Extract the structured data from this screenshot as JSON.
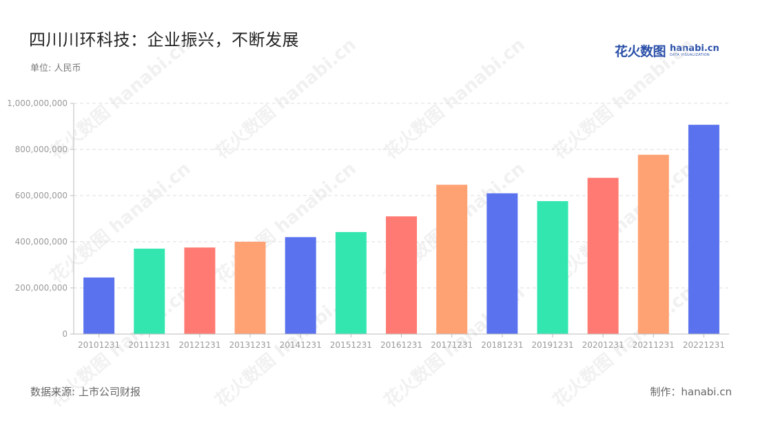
{
  "header": {
    "title": "四川川环科技：企业振兴，不断发展",
    "unit": "单位: 人民币"
  },
  "logo": {
    "cn": "花火数图",
    "en": "hanabi.cn",
    "en_sub": "DATA VISUALIZATION"
  },
  "footer": {
    "source": "数据来源: 上市公司财报",
    "credit": "制作：hanabi.cn"
  },
  "watermark_text": "花火数图 hanabi.cn",
  "chart_data": {
    "type": "bar",
    "categories": [
      "20101231",
      "20111231",
      "20121231",
      "20131231",
      "20141231",
      "20151231",
      "20161231",
      "20171231",
      "20181231",
      "20191231",
      "20201231",
      "20211231",
      "20221231"
    ],
    "values": [
      245000000,
      370000000,
      375000000,
      400000000,
      420000000,
      442000000,
      510000000,
      647000000,
      610000000,
      576000000,
      677000000,
      777000000,
      907000000
    ],
    "colors": [
      "#5a72ee",
      "#33e6b0",
      "#ff7a72",
      "#ffa273",
      "#5a72ee",
      "#33e6b0",
      "#ff7a72",
      "#ffa273",
      "#5a72ee",
      "#33e6b0",
      "#ff7a72",
      "#ffa273",
      "#5a72ee"
    ],
    "yticks": [
      "0",
      "200,000,000",
      "400,000,000",
      "600,000,000",
      "800,000,000",
      "1,000,000,000"
    ],
    "ylim": [
      0,
      1000000000
    ],
    "grid": true,
    "title": "四川川环科技：企业振兴，不断发展",
    "ylabel": "",
    "xlabel": ""
  }
}
